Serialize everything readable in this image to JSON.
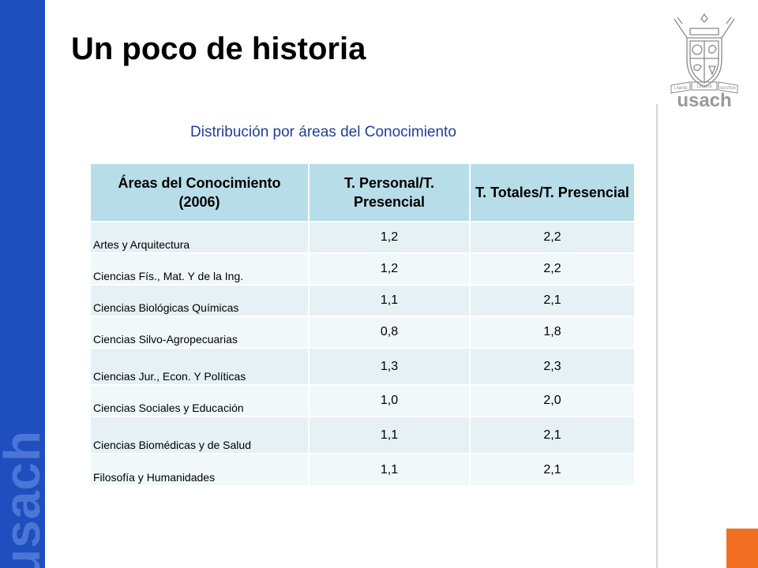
{
  "slide": {
    "title": "Un poco de historia",
    "subtitle": "Distribución por áreas del Conocimiento"
  },
  "brand": {
    "side_text": "usach",
    "logo_text": "usach",
    "logo_ribbons": [
      "LABOR",
      "LETITIA",
      "NOSTRA"
    ],
    "colors": {
      "sidebar": "#1f4fbf",
      "header_fill": "#b7dde8",
      "row_fill_a": "#e5f1f5",
      "row_fill_b": "#f1f8fa",
      "accent": "#f26f21",
      "subtitle": "#1f3f93"
    }
  },
  "table": {
    "headers": [
      "Áreas del Conocimiento (2006)",
      "T. Personal/T. Presencial",
      "T. Totales/T. Presencial"
    ],
    "rows": [
      {
        "area": "Artes y Arquitectura",
        "personal": "1,2",
        "totales": "2,2"
      },
      {
        "area": "Ciencias Fís., Mat. Y de la Ing.",
        "personal": "1,2",
        "totales": "2,2"
      },
      {
        "area": "Ciencias Biológicas Químicas",
        "personal": "1,1",
        "totales": "2,1"
      },
      {
        "area": "Ciencias Silvo-Agropecuarias",
        "personal": "0,8",
        "totales": "1,8"
      },
      {
        "area": "Ciencias Jur., Econ. Y Políticas",
        "personal": "1,3",
        "totales": "2,3"
      },
      {
        "area": "Ciencias Sociales y Educación",
        "personal": "1,0",
        "totales": "2,0"
      },
      {
        "area": "Ciencias Biomédicas y de Salud",
        "personal": "1,1",
        "totales": "2,1"
      },
      {
        "area": "Filosofía y Humanidades",
        "personal": "1,1",
        "totales": "2,1"
      }
    ]
  }
}
